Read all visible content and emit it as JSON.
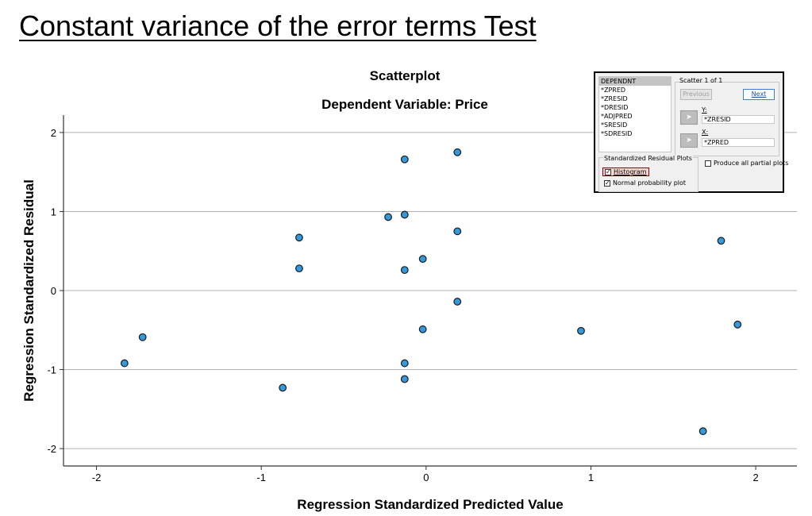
{
  "slide": {
    "title": "Constant variance of the error terms Test"
  },
  "chart_data": {
    "type": "scatter",
    "title": "Scatterplot",
    "subtitle": "Dependent Variable: Price",
    "xlabel": "Regression Standardized Predicted Value",
    "ylabel": "Regression Standardized Residual",
    "xlim": [
      -2.2,
      2.25
    ],
    "ylim": [
      -2.22,
      2.22
    ],
    "xticks": [
      -2,
      -1,
      0,
      1,
      2
    ],
    "yticks": [
      -2,
      -1,
      0,
      1,
      2
    ],
    "xtick_labels": [
      "-2",
      "-1",
      "0",
      "1",
      "2"
    ],
    "ytick_labels": [
      "-2",
      "-1",
      "0",
      "1",
      "2"
    ],
    "grid": "horizontal",
    "point_color": "#3399dd",
    "point_edge_color": "#1a1a1a",
    "points": [
      {
        "x": -1.83,
        "y": -0.92
      },
      {
        "x": -1.72,
        "y": -0.59
      },
      {
        "x": -0.87,
        "y": -1.23
      },
      {
        "x": -0.77,
        "y": 0.67
      },
      {
        "x": -0.77,
        "y": 0.28
      },
      {
        "x": -0.23,
        "y": 0.93
      },
      {
        "x": -0.13,
        "y": 1.66
      },
      {
        "x": -0.13,
        "y": 0.96
      },
      {
        "x": -0.13,
        "y": 0.26
      },
      {
        "x": -0.13,
        "y": -0.92
      },
      {
        "x": -0.13,
        "y": -1.12
      },
      {
        "x": -0.02,
        "y": 0.4
      },
      {
        "x": -0.02,
        "y": -0.49
      },
      {
        "x": 0.19,
        "y": 1.75
      },
      {
        "x": 0.19,
        "y": 0.75
      },
      {
        "x": 0.19,
        "y": -0.14
      },
      {
        "x": 0.94,
        "y": -0.51
      },
      {
        "x": 1.68,
        "y": -1.78
      },
      {
        "x": 1.79,
        "y": 0.63
      },
      {
        "x": 1.89,
        "y": -0.43
      }
    ]
  },
  "dialog": {
    "variables": [
      "DEPENDNT",
      "*ZPRED",
      "*ZRESID",
      "*DRESID",
      "*ADJPRED",
      "*SRESID",
      "*SDRESID"
    ],
    "selected_variable": "DEPENDNT",
    "scatter_label": "Scatter 1 of 1",
    "previous_label": "Previous",
    "next_label": "Next",
    "y_label": "Y:",
    "y_value": "*ZRESID",
    "x_label": "X:",
    "x_value": "*ZPRED",
    "srp_label": "Standardized Residual Plots",
    "histogram_label": "Histogram",
    "histogram_checked": true,
    "normal_label": "Normal probability plot",
    "normal_checked": true,
    "partial_label": "Produce all partial plots",
    "partial_checked": false
  }
}
